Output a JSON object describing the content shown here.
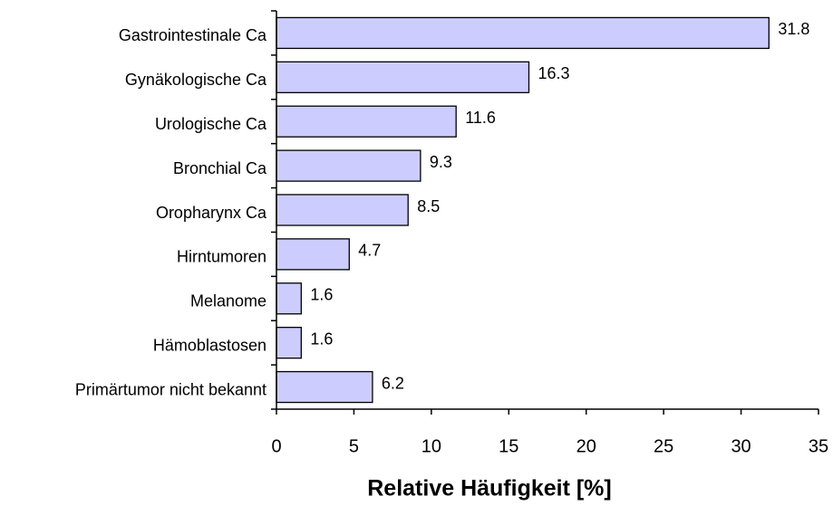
{
  "chart_data": {
    "type": "bar",
    "orientation": "horizontal",
    "categories": [
      "Gastrointestinale Ca",
      "Gynäkologische Ca",
      "Urologische Ca",
      "Bronchial Ca",
      "Oropharynx Ca",
      "Hirntumoren",
      "Melanome",
      "Hämoblastosen",
      "Primärtumor nicht bekannt"
    ],
    "values": [
      31.8,
      16.3,
      11.6,
      9.3,
      8.5,
      4.7,
      1.6,
      1.6,
      6.2
    ],
    "color": "#ccccff",
    "x_label": "Relative Häufigkeit [%]",
    "xlim": [
      0,
      35
    ],
    "xticks": [
      0,
      5,
      10,
      15,
      20,
      25,
      30,
      35
    ]
  }
}
